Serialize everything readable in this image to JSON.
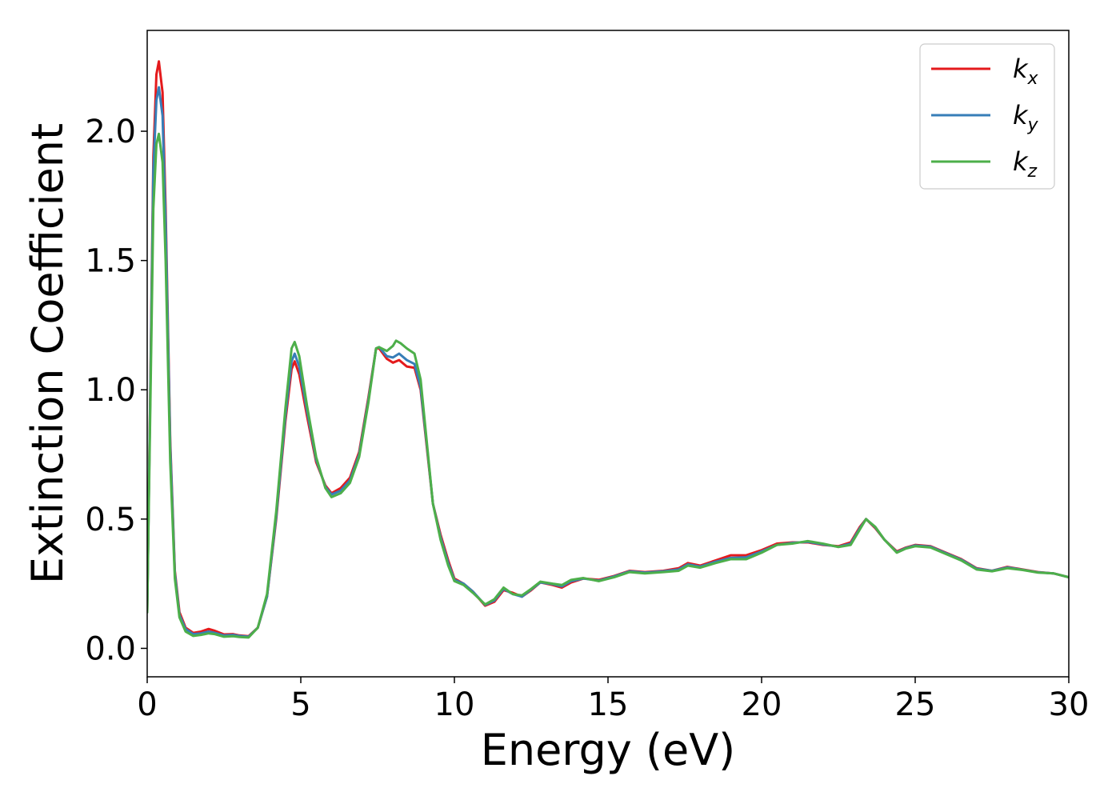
{
  "chart_data": {
    "type": "line",
    "xlabel": "Energy (eV)",
    "ylabel": "Extinction Coefficient",
    "xlim": [
      0,
      30
    ],
    "ylim": [
      -0.11,
      2.39
    ],
    "xticks": [
      0,
      5,
      10,
      15,
      20,
      25,
      30
    ],
    "xtick_labels": [
      "0",
      "5",
      "10",
      "15",
      "20",
      "25",
      "30"
    ],
    "yticks": [
      0.0,
      0.5,
      1.0,
      1.5,
      2.0
    ],
    "ytick_labels": [
      "0.0",
      "0.5",
      "1.0",
      "1.5",
      "2.0"
    ],
    "grid": false,
    "legend_position": "top-right",
    "series": [
      {
        "name": "k_x",
        "legend_main": "k",
        "legend_sub": "x",
        "color": "#e41a1c",
        "points": [
          [
            0,
            0.14
          ],
          [
            0.1,
            1.0
          ],
          [
            0.2,
            1.9
          ],
          [
            0.3,
            2.22
          ],
          [
            0.38,
            2.27
          ],
          [
            0.5,
            2.15
          ],
          [
            0.6,
            1.7
          ],
          [
            0.75,
            0.8
          ],
          [
            0.9,
            0.3
          ],
          [
            1.05,
            0.14
          ],
          [
            1.25,
            0.08
          ],
          [
            1.5,
            0.06
          ],
          [
            1.75,
            0.065
          ],
          [
            2.0,
            0.075
          ],
          [
            2.2,
            0.068
          ],
          [
            2.5,
            0.054
          ],
          [
            2.8,
            0.055
          ],
          [
            3.0,
            0.05
          ],
          [
            3.3,
            0.047
          ],
          [
            3.6,
            0.08
          ],
          [
            3.9,
            0.2
          ],
          [
            4.2,
            0.5
          ],
          [
            4.5,
            0.88
          ],
          [
            4.7,
            1.08
          ],
          [
            4.8,
            1.11
          ],
          [
            4.95,
            1.06
          ],
          [
            5.2,
            0.9
          ],
          [
            5.5,
            0.72
          ],
          [
            5.8,
            0.63
          ],
          [
            6.0,
            0.6
          ],
          [
            6.3,
            0.62
          ],
          [
            6.6,
            0.66
          ],
          [
            6.9,
            0.76
          ],
          [
            7.2,
            0.97
          ],
          [
            7.45,
            1.16
          ],
          [
            7.55,
            1.16
          ],
          [
            7.8,
            1.12
          ],
          [
            8.0,
            1.105
          ],
          [
            8.2,
            1.115
          ],
          [
            8.45,
            1.09
          ],
          [
            8.7,
            1.085
          ],
          [
            8.9,
            1.0
          ],
          [
            9.1,
            0.78
          ],
          [
            9.3,
            0.56
          ],
          [
            9.55,
            0.44
          ],
          [
            9.8,
            0.34
          ],
          [
            10.0,
            0.27
          ],
          [
            10.3,
            0.25
          ],
          [
            10.6,
            0.22
          ],
          [
            11.0,
            0.165
          ],
          [
            11.3,
            0.18
          ],
          [
            11.6,
            0.225
          ],
          [
            11.9,
            0.215
          ],
          [
            12.2,
            0.2
          ],
          [
            12.5,
            0.225
          ],
          [
            12.8,
            0.255
          ],
          [
            13.2,
            0.245
          ],
          [
            13.5,
            0.235
          ],
          [
            13.8,
            0.255
          ],
          [
            14.2,
            0.27
          ],
          [
            14.7,
            0.265
          ],
          [
            15.2,
            0.28
          ],
          [
            15.7,
            0.3
          ],
          [
            16.2,
            0.295
          ],
          [
            16.8,
            0.3
          ],
          [
            17.3,
            0.31
          ],
          [
            17.6,
            0.33
          ],
          [
            18.0,
            0.32
          ],
          [
            18.5,
            0.34
          ],
          [
            19.0,
            0.36
          ],
          [
            19.5,
            0.36
          ],
          [
            20.0,
            0.38
          ],
          [
            20.5,
            0.405
          ],
          [
            21.0,
            0.41
          ],
          [
            21.5,
            0.41
          ],
          [
            22.0,
            0.4
          ],
          [
            22.5,
            0.395
          ],
          [
            22.9,
            0.41
          ],
          [
            23.2,
            0.47
          ],
          [
            23.4,
            0.5
          ],
          [
            23.7,
            0.465
          ],
          [
            24.0,
            0.42
          ],
          [
            24.4,
            0.375
          ],
          [
            24.7,
            0.39
          ],
          [
            25.0,
            0.4
          ],
          [
            25.5,
            0.395
          ],
          [
            26.0,
            0.37
          ],
          [
            26.5,
            0.345
          ],
          [
            27.0,
            0.31
          ],
          [
            27.5,
            0.3
          ],
          [
            28.0,
            0.315
          ],
          [
            28.5,
            0.305
          ],
          [
            29.0,
            0.295
          ],
          [
            29.5,
            0.29
          ],
          [
            30.0,
            0.275
          ]
        ]
      },
      {
        "name": "k_y",
        "legend_main": "k",
        "legend_sub": "y",
        "color": "#377eb8",
        "points": [
          [
            0,
            0.14
          ],
          [
            0.1,
            0.98
          ],
          [
            0.2,
            1.85
          ],
          [
            0.3,
            2.12
          ],
          [
            0.38,
            2.17
          ],
          [
            0.5,
            2.06
          ],
          [
            0.6,
            1.65
          ],
          [
            0.75,
            0.78
          ],
          [
            0.9,
            0.29
          ],
          [
            1.05,
            0.13
          ],
          [
            1.25,
            0.075
          ],
          [
            1.5,
            0.055
          ],
          [
            1.75,
            0.058
          ],
          [
            2.0,
            0.065
          ],
          [
            2.2,
            0.06
          ],
          [
            2.5,
            0.05
          ],
          [
            2.8,
            0.052
          ],
          [
            3.0,
            0.048
          ],
          [
            3.3,
            0.045
          ],
          [
            3.6,
            0.08
          ],
          [
            3.9,
            0.2
          ],
          [
            4.2,
            0.51
          ],
          [
            4.5,
            0.9
          ],
          [
            4.7,
            1.11
          ],
          [
            4.8,
            1.14
          ],
          [
            4.95,
            1.09
          ],
          [
            5.2,
            0.92
          ],
          [
            5.5,
            0.73
          ],
          [
            5.8,
            0.625
          ],
          [
            6.0,
            0.595
          ],
          [
            6.3,
            0.61
          ],
          [
            6.6,
            0.65
          ],
          [
            6.9,
            0.75
          ],
          [
            7.2,
            0.96
          ],
          [
            7.45,
            1.16
          ],
          [
            7.55,
            1.165
          ],
          [
            7.8,
            1.13
          ],
          [
            8.0,
            1.125
          ],
          [
            8.2,
            1.14
          ],
          [
            8.45,
            1.115
          ],
          [
            8.7,
            1.1
          ],
          [
            8.9,
            1.01
          ],
          [
            9.1,
            0.79
          ],
          [
            9.3,
            0.56
          ],
          [
            9.55,
            0.43
          ],
          [
            9.8,
            0.33
          ],
          [
            10.0,
            0.265
          ],
          [
            10.3,
            0.25
          ],
          [
            10.6,
            0.22
          ],
          [
            11.0,
            0.168
          ],
          [
            11.3,
            0.185
          ],
          [
            11.6,
            0.23
          ],
          [
            11.9,
            0.21
          ],
          [
            12.2,
            0.2
          ],
          [
            12.5,
            0.228
          ],
          [
            12.8,
            0.255
          ],
          [
            13.2,
            0.248
          ],
          [
            13.5,
            0.24
          ],
          [
            13.8,
            0.26
          ],
          [
            14.2,
            0.27
          ],
          [
            14.7,
            0.262
          ],
          [
            15.2,
            0.278
          ],
          [
            15.7,
            0.298
          ],
          [
            16.2,
            0.293
          ],
          [
            16.8,
            0.298
          ],
          [
            17.3,
            0.305
          ],
          [
            17.6,
            0.325
          ],
          [
            18.0,
            0.316
          ],
          [
            18.5,
            0.335
          ],
          [
            19.0,
            0.35
          ],
          [
            19.5,
            0.352
          ],
          [
            20.0,
            0.375
          ],
          [
            20.5,
            0.4
          ],
          [
            21.0,
            0.408
          ],
          [
            21.5,
            0.412
          ],
          [
            22.0,
            0.402
          ],
          [
            22.5,
            0.393
          ],
          [
            22.9,
            0.405
          ],
          [
            23.2,
            0.465
          ],
          [
            23.4,
            0.5
          ],
          [
            23.7,
            0.468
          ],
          [
            24.0,
            0.42
          ],
          [
            24.4,
            0.372
          ],
          [
            24.7,
            0.388
          ],
          [
            25.0,
            0.398
          ],
          [
            25.5,
            0.393
          ],
          [
            26.0,
            0.368
          ],
          [
            26.5,
            0.343
          ],
          [
            27.0,
            0.308
          ],
          [
            27.5,
            0.3
          ],
          [
            28.0,
            0.313
          ],
          [
            28.5,
            0.304
          ],
          [
            29.0,
            0.294
          ],
          [
            29.5,
            0.29
          ],
          [
            30.0,
            0.275
          ]
        ]
      },
      {
        "name": "k_z",
        "legend_main": "k",
        "legend_sub": "z",
        "color": "#4daf4a",
        "points": [
          [
            0,
            0.14
          ],
          [
            0.1,
            0.92
          ],
          [
            0.2,
            1.7
          ],
          [
            0.3,
            1.95
          ],
          [
            0.38,
            1.99
          ],
          [
            0.5,
            1.88
          ],
          [
            0.6,
            1.5
          ],
          [
            0.75,
            0.72
          ],
          [
            0.9,
            0.27
          ],
          [
            1.05,
            0.12
          ],
          [
            1.25,
            0.065
          ],
          [
            1.5,
            0.048
          ],
          [
            1.75,
            0.052
          ],
          [
            2.0,
            0.058
          ],
          [
            2.2,
            0.055
          ],
          [
            2.5,
            0.045
          ],
          [
            2.8,
            0.047
          ],
          [
            3.0,
            0.044
          ],
          [
            3.3,
            0.042
          ],
          [
            3.6,
            0.08
          ],
          [
            3.9,
            0.21
          ],
          [
            4.2,
            0.53
          ],
          [
            4.5,
            0.93
          ],
          [
            4.7,
            1.16
          ],
          [
            4.8,
            1.185
          ],
          [
            4.95,
            1.13
          ],
          [
            5.2,
            0.94
          ],
          [
            5.5,
            0.74
          ],
          [
            5.8,
            0.62
          ],
          [
            6.0,
            0.585
          ],
          [
            6.3,
            0.6
          ],
          [
            6.6,
            0.64
          ],
          [
            6.9,
            0.74
          ],
          [
            7.2,
            0.95
          ],
          [
            7.45,
            1.16
          ],
          [
            7.55,
            1.165
          ],
          [
            7.8,
            1.15
          ],
          [
            8.0,
            1.17
          ],
          [
            8.1,
            1.19
          ],
          [
            8.25,
            1.18
          ],
          [
            8.45,
            1.16
          ],
          [
            8.7,
            1.14
          ],
          [
            8.9,
            1.04
          ],
          [
            9.1,
            0.8
          ],
          [
            9.3,
            0.56
          ],
          [
            9.55,
            0.42
          ],
          [
            9.8,
            0.32
          ],
          [
            10.0,
            0.26
          ],
          [
            10.3,
            0.245
          ],
          [
            10.6,
            0.215
          ],
          [
            11.0,
            0.17
          ],
          [
            11.3,
            0.19
          ],
          [
            11.6,
            0.235
          ],
          [
            11.9,
            0.21
          ],
          [
            12.2,
            0.205
          ],
          [
            12.5,
            0.23
          ],
          [
            12.8,
            0.258
          ],
          [
            13.2,
            0.25
          ],
          [
            13.5,
            0.245
          ],
          [
            13.8,
            0.265
          ],
          [
            14.2,
            0.272
          ],
          [
            14.7,
            0.26
          ],
          [
            15.2,
            0.275
          ],
          [
            15.7,
            0.295
          ],
          [
            16.2,
            0.29
          ],
          [
            16.8,
            0.295
          ],
          [
            17.3,
            0.3
          ],
          [
            17.6,
            0.32
          ],
          [
            18.0,
            0.312
          ],
          [
            18.5,
            0.33
          ],
          [
            19.0,
            0.345
          ],
          [
            19.5,
            0.345
          ],
          [
            20.0,
            0.37
          ],
          [
            20.5,
            0.4
          ],
          [
            21.0,
            0.405
          ],
          [
            21.5,
            0.415
          ],
          [
            22.0,
            0.405
          ],
          [
            22.5,
            0.392
          ],
          [
            22.9,
            0.4
          ],
          [
            23.2,
            0.46
          ],
          [
            23.4,
            0.5
          ],
          [
            23.7,
            0.47
          ],
          [
            24.0,
            0.42
          ],
          [
            24.4,
            0.37
          ],
          [
            24.7,
            0.386
          ],
          [
            25.0,
            0.395
          ],
          [
            25.5,
            0.39
          ],
          [
            26.0,
            0.365
          ],
          [
            26.5,
            0.34
          ],
          [
            27.0,
            0.305
          ],
          [
            27.5,
            0.298
          ],
          [
            28.0,
            0.31
          ],
          [
            28.5,
            0.303
          ],
          [
            29.0,
            0.293
          ],
          [
            29.5,
            0.29
          ],
          [
            30.0,
            0.275
          ]
        ]
      }
    ]
  }
}
